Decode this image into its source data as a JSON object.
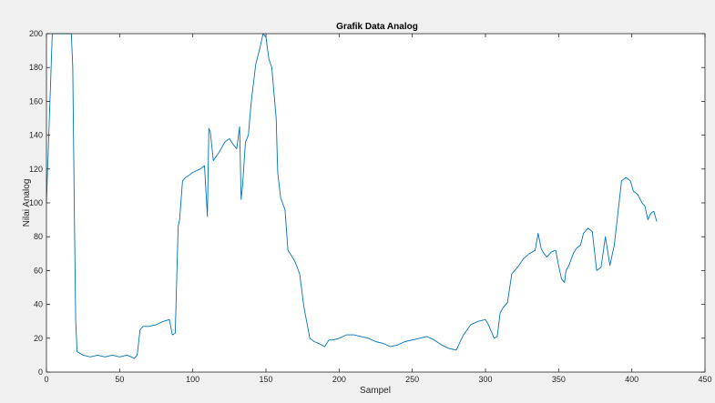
{
  "chart_data": {
    "type": "line",
    "title": "Grafik Data Analog",
    "xlabel": "Sampel",
    "ylabel": "Nilai Analog",
    "xlim": [
      0,
      450
    ],
    "ylim": [
      0,
      200
    ],
    "xticks": [
      "0",
      "50",
      "100",
      "150",
      "200",
      "250",
      "300",
      "350",
      "400",
      "450"
    ],
    "yticks": [
      "0",
      "20",
      "40",
      "60",
      "80",
      "100",
      "120",
      "140",
      "160",
      "180",
      "200"
    ],
    "grid": false,
    "line_color": "#0072bd",
    "series": [
      {
        "x": [
          0,
          2,
          4,
          6,
          8,
          10,
          12,
          14,
          16,
          17,
          18,
          19,
          20,
          21,
          25,
          30,
          35,
          40,
          45,
          50,
          55,
          58,
          60,
          62,
          64,
          66,
          70,
          75,
          80,
          84,
          86,
          88,
          90,
          91,
          93,
          95,
          97,
          100,
          105,
          108,
          110,
          111,
          112,
          114,
          118,
          122,
          125,
          128,
          130,
          132,
          133,
          134,
          136,
          138,
          140,
          143,
          146,
          148,
          150,
          152,
          154,
          156,
          157,
          158,
          160,
          163,
          165,
          168,
          170,
          173,
          176,
          180,
          183,
          186,
          190,
          193,
          196,
          200,
          205,
          210,
          215,
          220,
          225,
          230,
          235,
          240,
          245,
          250,
          255,
          260,
          265,
          270,
          275,
          280,
          285,
          290,
          295,
          300,
          302,
          305,
          306,
          308,
          310,
          312,
          315,
          318,
          322,
          326,
          330,
          334,
          336,
          338,
          340,
          342,
          345,
          348,
          350,
          352,
          354,
          355,
          357,
          360,
          362,
          365,
          367,
          370,
          373,
          376,
          379,
          382,
          385,
          388,
          390,
          393,
          396,
          399,
          401,
          404,
          407,
          409,
          411,
          413,
          415,
          417
        ],
        "y": [
          100,
          150,
          200,
          200,
          200,
          200,
          200,
          200,
          200,
          200,
          180,
          100,
          30,
          12,
          10,
          9,
          10,
          9,
          10,
          9,
          10,
          9,
          8,
          10,
          25,
          27,
          27,
          28,
          30,
          31,
          22,
          23,
          86,
          90,
          113,
          115,
          116,
          118,
          120,
          122,
          92,
          144,
          142,
          125,
          130,
          136,
          138,
          134,
          132,
          145,
          102,
          110,
          136,
          140,
          160,
          182,
          192,
          200,
          198,
          185,
          180,
          160,
          150,
          118,
          103,
          96,
          72,
          68,
          65,
          58,
          38,
          20,
          18,
          17,
          15,
          19,
          19,
          20,
          22,
          22,
          21,
          20,
          18,
          17,
          15,
          16,
          18,
          19,
          20,
          21,
          19,
          16,
          14,
          13,
          22,
          28,
          30,
          31,
          28,
          22,
          20,
          21,
          35,
          38,
          41,
          58,
          62,
          67,
          70,
          72,
          82,
          73,
          70,
          68,
          71,
          72,
          63,
          55,
          53,
          60,
          63,
          70,
          73,
          75,
          82,
          85,
          83,
          60,
          62,
          80,
          63,
          75,
          90,
          113,
          115,
          113,
          107,
          105,
          100,
          98,
          90,
          94,
          95,
          89
        ]
      }
    ]
  }
}
